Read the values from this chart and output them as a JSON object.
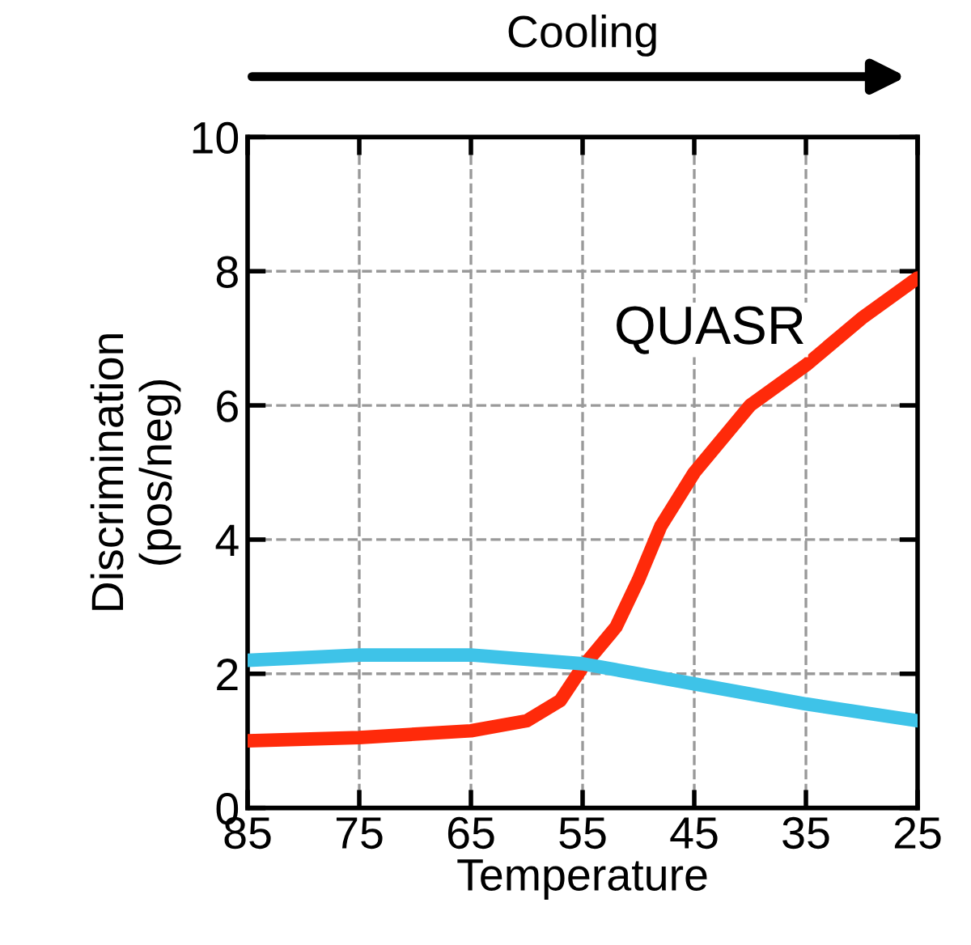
{
  "chart_data": {
    "type": "line",
    "xlabel": "Temperature",
    "ylabel": "Discrimination\n(pos/neg)",
    "annotations": [
      "Cooling"
    ],
    "xlim": [
      85,
      25
    ],
    "xticks": [
      85,
      75,
      65,
      55,
      45,
      35,
      25
    ],
    "ylim": [
      0,
      10
    ],
    "yticks": [
      0,
      2,
      4,
      6,
      8,
      10
    ],
    "grid": true,
    "line_style": "solid",
    "series": [
      {
        "name": "QUASR",
        "color": "#ff2a0a",
        "x": [
          85,
          75,
          65,
          60,
          57,
          55,
          52,
          50,
          48,
          45,
          42,
          40,
          35,
          30,
          25
        ],
        "values": [
          1.0,
          1.05,
          1.15,
          1.3,
          1.6,
          2.1,
          2.7,
          3.4,
          4.2,
          5.0,
          5.6,
          6.0,
          6.6,
          7.3,
          7.9
        ]
      },
      {
        "color": "#3ec3e8",
        "x": [
          85,
          75,
          65,
          55,
          45,
          35,
          25
        ],
        "values": [
          2.2,
          2.28,
          2.28,
          2.15,
          1.85,
          1.55,
          1.3
        ]
      }
    ]
  }
}
